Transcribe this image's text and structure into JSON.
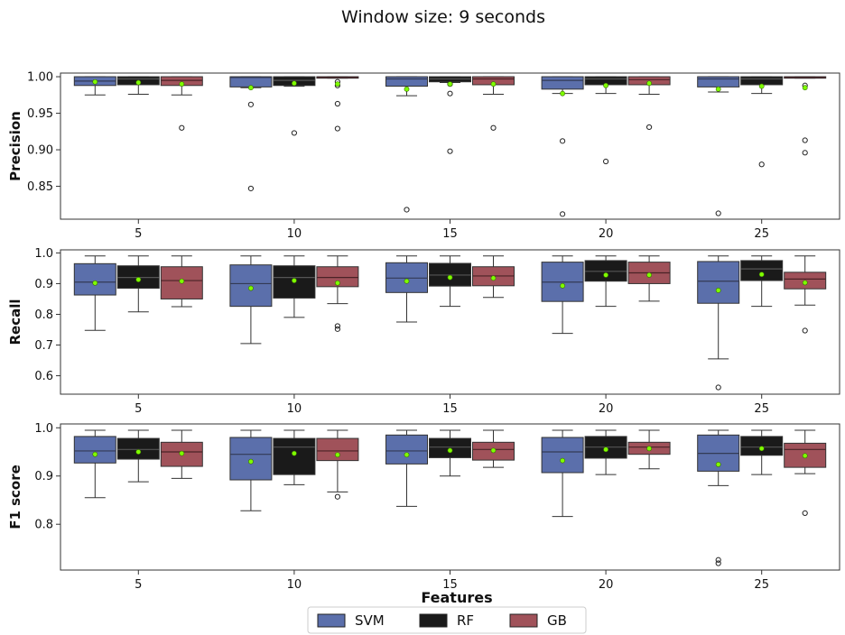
{
  "chart_data": {
    "type": "box",
    "title": "Window size: 9 seconds",
    "xlabel": "Features",
    "categories": [
      "5",
      "10",
      "15",
      "20",
      "25"
    ],
    "legend": {
      "placement": "bottom-center",
      "entries": [
        {
          "name": "SVM",
          "color": "#5b6fab"
        },
        {
          "name": "RF",
          "color": "#1a1a1a"
        },
        {
          "name": "GB",
          "color": "#a0525a"
        }
      ]
    },
    "mean_marker_color": "#7fff00",
    "panels": [
      {
        "ylabel": "Precision",
        "ylim": [
          0.805,
          1.005
        ],
        "yticks": [
          "0.85",
          "0.90",
          "0.95",
          "1.00"
        ],
        "series": [
          {
            "name": "SVM",
            "boxes": [
              {
                "low": 0.975,
                "q1": 0.988,
                "median": 0.994,
                "q3": 1.0,
                "high": 1.0,
                "mean": 0.993,
                "fliers": []
              },
              {
                "low": 0.985,
                "q1": 0.986,
                "median": 0.999,
                "q3": 1.0,
                "high": 1.0,
                "mean": 0.985,
                "fliers": [
                  0.962,
                  0.847
                ]
              },
              {
                "low": 0.974,
                "q1": 0.987,
                "median": 0.997,
                "q3": 1.0,
                "high": 1.0,
                "mean": 0.983,
                "fliers": [
                  0.818
                ]
              },
              {
                "low": 0.977,
                "q1": 0.983,
                "median": 0.995,
                "q3": 1.0,
                "high": 1.0,
                "mean": 0.977,
                "fliers": [
                  0.912,
                  0.812
                ]
              },
              {
                "low": 0.979,
                "q1": 0.986,
                "median": 0.997,
                "q3": 1.0,
                "high": 1.0,
                "mean": 0.983,
                "fliers": [
                  0.813
                ]
              }
            ]
          },
          {
            "name": "RF",
            "boxes": [
              {
                "low": 0.976,
                "q1": 0.989,
                "median": 0.997,
                "q3": 1.0,
                "high": 1.0,
                "mean": 0.992,
                "fliers": []
              },
              {
                "low": 0.987,
                "q1": 0.988,
                "median": 0.995,
                "q3": 1.0,
                "high": 1.0,
                "mean": 0.991,
                "fliers": [
                  0.923
                ]
              },
              {
                "low": 0.992,
                "q1": 0.993,
                "median": 0.997,
                "q3": 1.0,
                "high": 1.0,
                "mean": 0.99,
                "fliers": [
                  0.99,
                  0.977,
                  0.898
                ]
              },
              {
                "low": 0.977,
                "q1": 0.989,
                "median": 0.997,
                "q3": 1.0,
                "high": 1.0,
                "mean": 0.988,
                "fliers": [
                  0.884
                ]
              },
              {
                "low": 0.977,
                "q1": 0.989,
                "median": 0.997,
                "q3": 1.0,
                "high": 1.0,
                "mean": 0.987,
                "fliers": [
                  0.88
                ]
              }
            ]
          },
          {
            "name": "GB",
            "boxes": [
              {
                "low": 0.975,
                "q1": 0.988,
                "median": 0.995,
                "q3": 1.0,
                "high": 1.0,
                "mean": 0.99,
                "fliers": [
                  0.93
                ]
              },
              {
                "low": 0.998,
                "q1": 0.998,
                "median": 0.999,
                "q3": 1.0,
                "high": 1.0,
                "mean": 0.99,
                "fliers": [
                  0.993,
                  0.988,
                  0.963,
                  0.929
                ]
              },
              {
                "low": 0.976,
                "q1": 0.989,
                "median": 0.997,
                "q3": 1.0,
                "high": 1.0,
                "mean": 0.99,
                "fliers": [
                  0.93
                ]
              },
              {
                "low": 0.976,
                "q1": 0.989,
                "median": 0.996,
                "q3": 1.0,
                "high": 1.0,
                "mean": 0.991,
                "fliers": [
                  0.931
                ]
              },
              {
                "low": 0.998,
                "q1": 0.998,
                "median": 0.999,
                "q3": 1.0,
                "high": 1.0,
                "mean": 0.985,
                "fliers": [
                  0.988,
                  0.913,
                  0.896
                ]
              }
            ]
          }
        ]
      },
      {
        "ylabel": "Recall",
        "ylim": [
          0.54,
          1.01
        ],
        "yticks": [
          "0.6",
          "0.7",
          "0.8",
          "0.9",
          "1.0"
        ],
        "series": [
          {
            "name": "SVM",
            "boxes": [
              {
                "low": 0.748,
                "q1": 0.863,
                "median": 0.905,
                "q3": 0.965,
                "high": 0.99,
                "mean": 0.902,
                "fliers": []
              },
              {
                "low": 0.705,
                "q1": 0.826,
                "median": 0.9,
                "q3": 0.961,
                "high": 0.99,
                "mean": 0.885,
                "fliers": []
              },
              {
                "low": 0.775,
                "q1": 0.871,
                "median": 0.918,
                "q3": 0.968,
                "high": 0.99,
                "mean": 0.908,
                "fliers": []
              },
              {
                "low": 0.738,
                "q1": 0.842,
                "median": 0.905,
                "q3": 0.97,
                "high": 0.99,
                "mean": 0.893,
                "fliers": []
              },
              {
                "low": 0.655,
                "q1": 0.836,
                "median": 0.908,
                "q3": 0.972,
                "high": 0.99,
                "mean": 0.878,
                "fliers": [
                  0.562
                ]
              }
            ]
          },
          {
            "name": "RF",
            "boxes": [
              {
                "low": 0.808,
                "q1": 0.885,
                "median": 0.92,
                "q3": 0.958,
                "high": 0.99,
                "mean": 0.913,
                "fliers": []
              },
              {
                "low": 0.79,
                "q1": 0.853,
                "median": 0.92,
                "q3": 0.958,
                "high": 0.99,
                "mean": 0.91,
                "fliers": []
              },
              {
                "low": 0.826,
                "q1": 0.892,
                "median": 0.928,
                "q3": 0.966,
                "high": 0.99,
                "mean": 0.92,
                "fliers": []
              },
              {
                "low": 0.826,
                "q1": 0.908,
                "median": 0.94,
                "q3": 0.975,
                "high": 0.99,
                "mean": 0.928,
                "fliers": []
              },
              {
                "low": 0.826,
                "q1": 0.91,
                "median": 0.948,
                "q3": 0.975,
                "high": 0.99,
                "mean": 0.93,
                "fliers": []
              }
            ]
          },
          {
            "name": "GB",
            "boxes": [
              {
                "low": 0.825,
                "q1": 0.85,
                "median": 0.91,
                "q3": 0.955,
                "high": 0.99,
                "mean": 0.908,
                "fliers": []
              },
              {
                "low": 0.835,
                "q1": 0.89,
                "median": 0.92,
                "q3": 0.955,
                "high": 0.99,
                "mean": 0.902,
                "fliers": [
                  0.762,
                  0.752
                ]
              },
              {
                "low": 0.855,
                "q1": 0.893,
                "median": 0.925,
                "q3": 0.955,
                "high": 0.99,
                "mean": 0.918,
                "fliers": []
              },
              {
                "low": 0.843,
                "q1": 0.9,
                "median": 0.935,
                "q3": 0.97,
                "high": 0.99,
                "mean": 0.928,
                "fliers": []
              },
              {
                "low": 0.83,
                "q1": 0.883,
                "median": 0.915,
                "q3": 0.937,
                "high": 0.99,
                "mean": 0.903,
                "fliers": [
                  0.747
                ]
              }
            ]
          }
        ]
      },
      {
        "ylabel": "F1 score",
        "ylim": [
          0.705,
          1.008
        ],
        "yticks": [
          "0.8",
          "0.9",
          "1.0"
        ],
        "series": [
          {
            "name": "SVM",
            "boxes": [
              {
                "low": 0.855,
                "q1": 0.927,
                "median": 0.952,
                "q3": 0.982,
                "high": 0.995,
                "mean": 0.945,
                "fliers": []
              },
              {
                "low": 0.828,
                "q1": 0.892,
                "median": 0.945,
                "q3": 0.98,
                "high": 0.995,
                "mean": 0.93,
                "fliers": []
              },
              {
                "low": 0.837,
                "q1": 0.925,
                "median": 0.952,
                "q3": 0.985,
                "high": 0.995,
                "mean": 0.944,
                "fliers": []
              },
              {
                "low": 0.816,
                "q1": 0.907,
                "median": 0.95,
                "q3": 0.98,
                "high": 0.995,
                "mean": 0.932,
                "fliers": []
              },
              {
                "low": 0.88,
                "q1": 0.91,
                "median": 0.947,
                "q3": 0.985,
                "high": 0.995,
                "mean": 0.924,
                "fliers": [
                  0.726,
                  0.719
                ]
              }
            ]
          },
          {
            "name": "RF",
            "boxes": [
              {
                "low": 0.888,
                "q1": 0.935,
                "median": 0.955,
                "q3": 0.978,
                "high": 0.995,
                "mean": 0.95,
                "fliers": []
              },
              {
                "low": 0.882,
                "q1": 0.903,
                "median": 0.96,
                "q3": 0.978,
                "high": 0.995,
                "mean": 0.947,
                "fliers": []
              },
              {
                "low": 0.9,
                "q1": 0.938,
                "median": 0.96,
                "q3": 0.978,
                "high": 0.995,
                "mean": 0.953,
                "fliers": []
              },
              {
                "low": 0.903,
                "q1": 0.937,
                "median": 0.96,
                "q3": 0.982,
                "high": 0.995,
                "mean": 0.955,
                "fliers": []
              },
              {
                "low": 0.903,
                "q1": 0.943,
                "median": 0.96,
                "q3": 0.982,
                "high": 0.995,
                "mean": 0.957,
                "fliers": []
              }
            ]
          },
          {
            "name": "GB",
            "boxes": [
              {
                "low": 0.895,
                "q1": 0.92,
                "median": 0.95,
                "q3": 0.97,
                "high": 0.995,
                "mean": 0.947,
                "fliers": []
              },
              {
                "low": 0.867,
                "q1": 0.932,
                "median": 0.952,
                "q3": 0.978,
                "high": 0.995,
                "mean": 0.944,
                "fliers": [
                  0.857
                ]
              },
              {
                "low": 0.918,
                "q1": 0.933,
                "median": 0.955,
                "q3": 0.97,
                "high": 0.995,
                "mean": 0.953,
                "fliers": []
              },
              {
                "low": 0.915,
                "q1": 0.945,
                "median": 0.96,
                "q3": 0.97,
                "high": 0.995,
                "mean": 0.957,
                "fliers": []
              },
              {
                "low": 0.905,
                "q1": 0.918,
                "median": 0.955,
                "q3": 0.968,
                "high": 0.995,
                "mean": 0.942,
                "fliers": [
                  0.823
                ]
              }
            ]
          }
        ]
      }
    ]
  }
}
